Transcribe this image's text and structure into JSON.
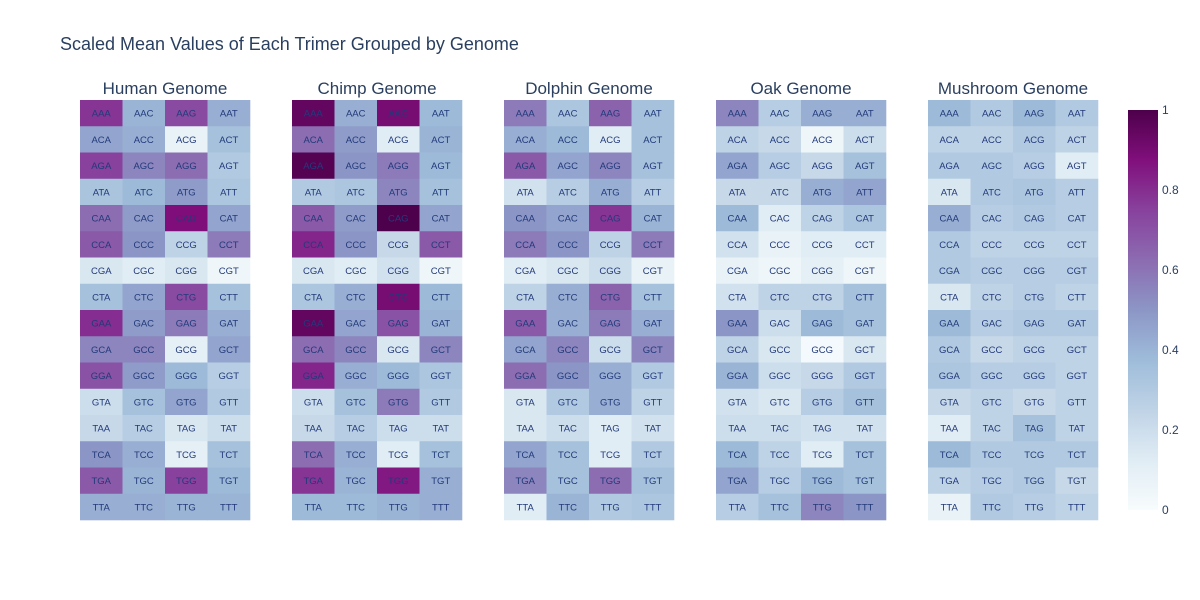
{
  "chart_data": {
    "type": "heatmap",
    "title": "Scaled Mean Values of Each Trimer Grouped by Genome",
    "colorscale": {
      "name": "BuPu",
      "stops": [
        "#f7fcfd",
        "#e0ecf4",
        "#bfd3e6",
        "#9ebcda",
        "#8c96c6",
        "#8c6bb1",
        "#88419d",
        "#810f7c",
        "#4d004b"
      ],
      "min": 0,
      "max": 1,
      "ticks": [
        0,
        0.2,
        0.4,
        0.6,
        0.8,
        1
      ]
    },
    "columns": [
      [
        "AAA",
        "ACA",
        "AGA",
        "ATA",
        "CAA",
        "CCA",
        "CGA",
        "CTA",
        "GAA",
        "GCA",
        "GGA",
        "GTA",
        "TAA",
        "TCA",
        "TGA",
        "TTA"
      ],
      [
        "AAC",
        "ACC",
        "AGC",
        "ATC",
        "CAC",
        "CCC",
        "CGC",
        "CTC",
        "GAC",
        "GCC",
        "GGC",
        "GTC",
        "TAC",
        "TCC",
        "TGC",
        "TTC"
      ],
      [
        "AAG",
        "ACG",
        "AGG",
        "ATG",
        "CAG",
        "CCG",
        "CGG",
        "CTG",
        "GAG",
        "GCG",
        "GGG",
        "GTG",
        "TAG",
        "TCG",
        "TGG",
        "TTG"
      ],
      [
        "AAT",
        "ACT",
        "AGT",
        "ATT",
        "CAT",
        "CCT",
        "CGT",
        "CTT",
        "GAT",
        "GCT",
        "GGT",
        "GTT",
        "TAT",
        "TCT",
        "TGT",
        "TTT"
      ]
    ],
    "panels": [
      {
        "name": "Human Genome",
        "values": [
          [
            0.78,
            0.45,
            0.75,
            0.33,
            0.62,
            0.68,
            0.15,
            0.35,
            0.8,
            0.55,
            0.7,
            0.2,
            0.22,
            0.5,
            0.68,
            0.42
          ],
          [
            0.4,
            0.42,
            0.55,
            0.38,
            0.48,
            0.5,
            0.12,
            0.45,
            0.48,
            0.55,
            0.48,
            0.35,
            0.28,
            0.42,
            0.4,
            0.42
          ],
          [
            0.72,
            0.08,
            0.62,
            0.48,
            0.88,
            0.25,
            0.15,
            0.72,
            0.58,
            0.1,
            0.38,
            0.45,
            0.15,
            0.1,
            0.75,
            0.4
          ],
          [
            0.42,
            0.35,
            0.3,
            0.32,
            0.45,
            0.58,
            0.05,
            0.35,
            0.42,
            0.45,
            0.28,
            0.3,
            0.2,
            0.35,
            0.38,
            0.4
          ]
        ]
      },
      {
        "name": "Chimp Genome",
        "values": [
          [
            0.95,
            0.62,
            0.98,
            0.3,
            0.68,
            0.82,
            0.15,
            0.32,
            0.95,
            0.62,
            0.82,
            0.2,
            0.22,
            0.62,
            0.78,
            0.38
          ],
          [
            0.42,
            0.48,
            0.5,
            0.32,
            0.48,
            0.5,
            0.12,
            0.42,
            0.45,
            0.55,
            0.42,
            0.35,
            0.28,
            0.42,
            0.4,
            0.38
          ],
          [
            0.9,
            0.12,
            0.58,
            0.55,
            1.0,
            0.22,
            0.18,
            0.9,
            0.7,
            0.15,
            0.38,
            0.58,
            0.2,
            0.12,
            0.85,
            0.4
          ],
          [
            0.38,
            0.4,
            0.38,
            0.35,
            0.45,
            0.68,
            0.05,
            0.38,
            0.4,
            0.55,
            0.32,
            0.3,
            0.2,
            0.35,
            0.42,
            0.42
          ]
        ]
      },
      {
        "name": "Dolphin Genome",
        "values": [
          [
            0.58,
            0.42,
            0.68,
            0.18,
            0.5,
            0.58,
            0.12,
            0.25,
            0.68,
            0.45,
            0.62,
            0.15,
            0.15,
            0.45,
            0.55,
            0.12
          ],
          [
            0.32,
            0.38,
            0.45,
            0.28,
            0.45,
            0.5,
            0.15,
            0.42,
            0.42,
            0.55,
            0.5,
            0.3,
            0.2,
            0.35,
            0.35,
            0.4
          ],
          [
            0.65,
            0.12,
            0.55,
            0.42,
            0.78,
            0.25,
            0.2,
            0.65,
            0.58,
            0.2,
            0.42,
            0.42,
            0.12,
            0.12,
            0.62,
            0.3
          ],
          [
            0.35,
            0.35,
            0.35,
            0.28,
            0.4,
            0.58,
            0.08,
            0.35,
            0.42,
            0.55,
            0.3,
            0.25,
            0.18,
            0.3,
            0.35,
            0.32
          ]
        ]
      },
      {
        "name": "Oak Genome",
        "values": [
          [
            0.55,
            0.25,
            0.45,
            0.22,
            0.38,
            0.18,
            0.08,
            0.18,
            0.5,
            0.25,
            0.4,
            0.18,
            0.2,
            0.38,
            0.45,
            0.28
          ],
          [
            0.28,
            0.22,
            0.28,
            0.22,
            0.12,
            0.08,
            0.05,
            0.25,
            0.2,
            0.15,
            0.2,
            0.15,
            0.2,
            0.25,
            0.28,
            0.35
          ],
          [
            0.42,
            0.05,
            0.22,
            0.42,
            0.25,
            0.12,
            0.1,
            0.25,
            0.38,
            0.02,
            0.22,
            0.28,
            0.18,
            0.12,
            0.38,
            0.55
          ],
          [
            0.42,
            0.2,
            0.35,
            0.45,
            0.32,
            0.12,
            0.05,
            0.35,
            0.35,
            0.15,
            0.3,
            0.35,
            0.18,
            0.35,
            0.35,
            0.5
          ]
        ]
      },
      {
        "name": "Mushroom Genome",
        "values": [
          [
            0.38,
            0.25,
            0.3,
            0.15,
            0.42,
            0.3,
            0.3,
            0.15,
            0.38,
            0.3,
            0.32,
            0.22,
            0.12,
            0.38,
            0.25,
            0.08
          ],
          [
            0.3,
            0.25,
            0.3,
            0.3,
            0.28,
            0.25,
            0.28,
            0.25,
            0.28,
            0.22,
            0.28,
            0.25,
            0.25,
            0.3,
            0.28,
            0.3
          ],
          [
            0.38,
            0.3,
            0.28,
            0.32,
            0.3,
            0.25,
            0.28,
            0.28,
            0.3,
            0.25,
            0.28,
            0.22,
            0.35,
            0.3,
            0.3,
            0.28
          ],
          [
            0.3,
            0.25,
            0.12,
            0.28,
            0.28,
            0.25,
            0.28,
            0.25,
            0.3,
            0.25,
            0.25,
            0.25,
            0.25,
            0.3,
            0.22,
            0.25
          ]
        ]
      }
    ]
  }
}
